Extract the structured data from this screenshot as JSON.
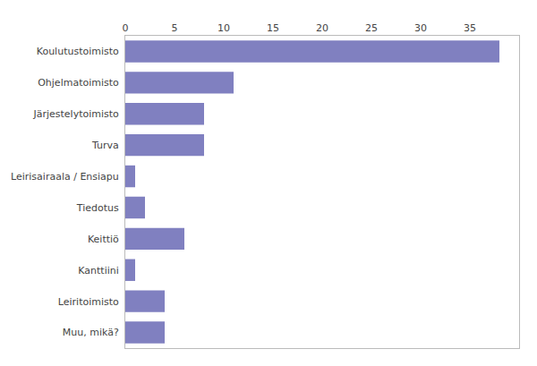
{
  "chart_data": {
    "type": "bar",
    "orientation": "horizontal",
    "categories": [
      "Koulutustoimisto",
      "Ohjelmatoimisto",
      "Järjestelytoimisto",
      "Turva",
      "Leirisairaala / Ensiapu",
      "Tiedotus",
      "Keittiö",
      "Kanttiini",
      "Leiritoimisto",
      "Muu, mikä?"
    ],
    "values": [
      38,
      11,
      8,
      8,
      1,
      2,
      6,
      1,
      4,
      4
    ],
    "color": "#8080c0",
    "xlim": [
      0,
      40
    ],
    "xticks": [
      0,
      5,
      10,
      15,
      20,
      25,
      30,
      35
    ],
    "grid": true
  }
}
